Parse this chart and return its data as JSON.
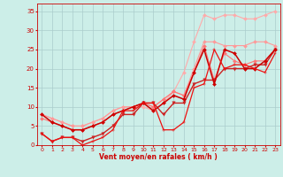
{
  "xlabel": "Vent moyen/en rafales ( km/h )",
  "xlim": [
    -0.5,
    23.5
  ],
  "ylim": [
    0,
    37
  ],
  "xticks": [
    0,
    1,
    2,
    3,
    4,
    5,
    6,
    7,
    8,
    9,
    10,
    11,
    12,
    13,
    14,
    15,
    16,
    17,
    18,
    19,
    20,
    21,
    22,
    23
  ],
  "yticks": [
    0,
    5,
    10,
    15,
    20,
    25,
    30,
    35
  ],
  "background_color": "#cceee8",
  "grid_color": "#aacccc",
  "series": [
    {
      "x": [
        0,
        1,
        2,
        3,
        4,
        5,
        6,
        7,
        8,
        9,
        10,
        11,
        12,
        13,
        14,
        15,
        16,
        17,
        18,
        19,
        20,
        21,
        22,
        23
      ],
      "y": [
        8,
        7,
        6,
        5,
        5,
        6,
        7,
        9,
        10,
        10,
        10,
        9,
        11,
        14,
        19,
        27,
        34,
        33,
        34,
        34,
        33,
        33,
        34,
        35
      ],
      "color": "#ffaaaa",
      "marker": "D",
      "markersize": 2,
      "linewidth": 0.8
    },
    {
      "x": [
        0,
        1,
        2,
        3,
        4,
        5,
        6,
        7,
        8,
        9,
        10,
        11,
        12,
        13,
        14,
        15,
        16,
        17,
        18,
        19,
        20,
        21,
        22,
        23
      ],
      "y": [
        8,
        7,
        6,
        5,
        5,
        6,
        7,
        9,
        10,
        10,
        11,
        10,
        12,
        14,
        13,
        20,
        27,
        27,
        26,
        26,
        26,
        27,
        27,
        26
      ],
      "color": "#ff9999",
      "marker": "D",
      "markersize": 2,
      "linewidth": 0.8
    },
    {
      "x": [
        0,
        1,
        2,
        3,
        4,
        5,
        6,
        7,
        8,
        9,
        10,
        11,
        12,
        13,
        14,
        15,
        16,
        17,
        18,
        19,
        20,
        21,
        22,
        23
      ],
      "y": [
        7,
        6,
        5,
        4,
        4,
        5,
        6,
        8,
        9,
        10,
        11,
        10,
        12,
        14,
        13,
        19,
        26,
        17,
        24,
        22,
        21,
        22,
        22,
        25
      ],
      "color": "#ff7777",
      "marker": "D",
      "markersize": 2,
      "linewidth": 0.8
    },
    {
      "x": [
        0,
        1,
        2,
        3,
        4,
        5,
        6,
        7,
        8,
        9,
        10,
        11,
        12,
        13,
        14,
        15,
        16,
        17,
        18,
        19,
        20,
        21,
        22,
        23
      ],
      "y": [
        3,
        1,
        2,
        2,
        1,
        2,
        3,
        5,
        8,
        8,
        11,
        11,
        8,
        11,
        11,
        16,
        17,
        17,
        20,
        20,
        20,
        21,
        21,
        25
      ],
      "color": "#cc2222",
      "marker": "v",
      "markersize": 2.5,
      "linewidth": 1.0
    },
    {
      "x": [
        0,
        1,
        2,
        3,
        4,
        5,
        6,
        7,
        8,
        9,
        10,
        11,
        12,
        13,
        14,
        15,
        16,
        17,
        18,
        19,
        20,
        21,
        22,
        23
      ],
      "y": [
        8,
        6,
        5,
        4,
        4,
        5,
        6,
        8,
        9,
        10,
        11,
        9,
        11,
        13,
        12,
        19,
        25,
        16,
        25,
        24,
        20,
        20,
        22,
        25
      ],
      "color": "#cc0000",
      "marker": "D",
      "markersize": 2,
      "linewidth": 1.1
    },
    {
      "x": [
        0,
        1,
        2,
        3,
        4,
        5,
        6,
        7,
        8,
        9,
        10,
        11,
        12,
        13,
        14,
        15,
        16,
        17,
        18,
        19,
        20,
        21,
        22,
        23
      ],
      "y": [
        3,
        1,
        2,
        2,
        0,
        1,
        2,
        4,
        9,
        9,
        11,
        11,
        4,
        4,
        6,
        15,
        16,
        25,
        20,
        21,
        21,
        20,
        19,
        24
      ],
      "color": "#ee1111",
      "marker": "+",
      "markersize": 3,
      "linewidth": 0.9
    }
  ]
}
